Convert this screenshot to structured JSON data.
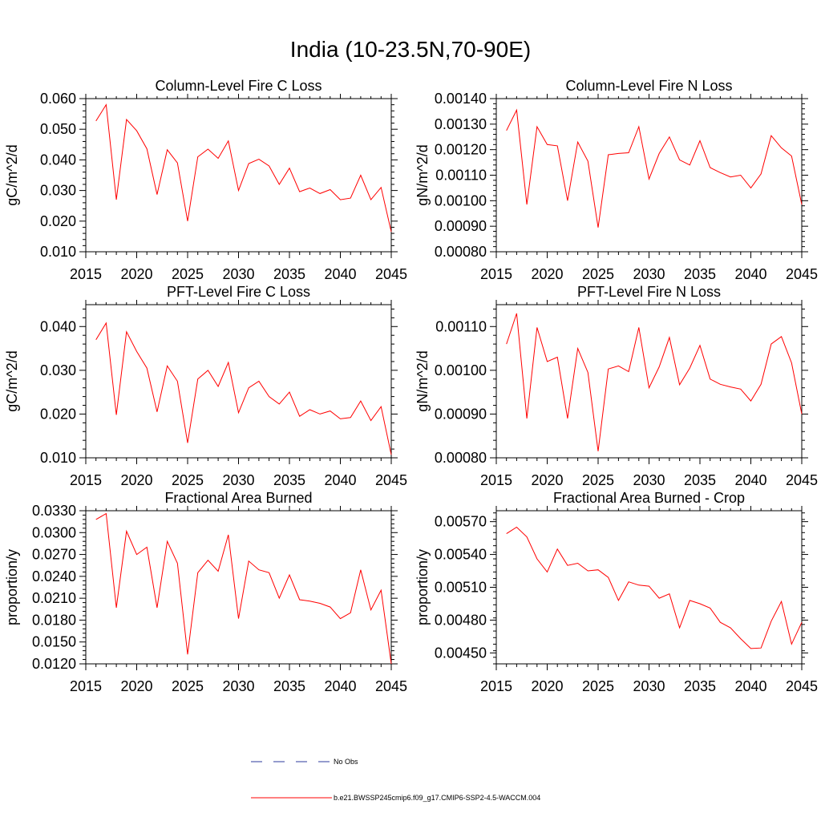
{
  "page_title": "India (10-23.5N,70-90E)",
  "legend": {
    "obs_label": "No Obs",
    "model_label": "b.e21.BWSSP245cmip6.f09_g17.CMIP6-SSP2-4.5-WACCM.004",
    "obs_color": "#2b3a9e",
    "model_color": "#ff0000"
  },
  "chart_data": [
    {
      "type": "line",
      "title": "Column-Level Fire C Loss",
      "xlabel": "",
      "ylabel": "gC/m^2/d",
      "xlim": [
        2015,
        2045
      ],
      "ylim": [
        0.01,
        0.06
      ],
      "xticks": [
        2015,
        2020,
        2025,
        2030,
        2035,
        2040,
        2045
      ],
      "yticks": [
        0.01,
        0.02,
        0.03,
        0.04,
        0.05,
        0.06
      ],
      "ydecimals": 3,
      "x": [
        2016,
        2017,
        2018,
        2019,
        2020,
        2021,
        2022,
        2023,
        2024,
        2025,
        2026,
        2027,
        2028,
        2029,
        2030,
        2031,
        2032,
        2033,
        2034,
        2035,
        2036,
        2037,
        2038,
        2039,
        2040,
        2041,
        2042,
        2043,
        2044,
        2045
      ],
      "series": [
        {
          "name": "b.e21.BWSSP245cmip6.f09_g17.CMIP6-SSP2-4.5-WACCM.004",
          "values": [
            0.0527,
            0.058,
            0.027,
            0.0532,
            0.0495,
            0.0436,
            0.0287,
            0.0433,
            0.039,
            0.02,
            0.041,
            0.0435,
            0.0405,
            0.0462,
            0.03,
            0.0388,
            0.0402,
            0.038,
            0.032,
            0.0373,
            0.0296,
            0.0308,
            0.029,
            0.0303,
            0.027,
            0.0275,
            0.035,
            0.027,
            0.031,
            0.0165
          ]
        }
      ]
    },
    {
      "type": "line",
      "title": "Column-Level Fire N Loss",
      "xlabel": "",
      "ylabel": "gN/m^2/d",
      "xlim": [
        2015,
        2045
      ],
      "ylim": [
        0.0008,
        0.0014
      ],
      "xticks": [
        2015,
        2020,
        2025,
        2030,
        2035,
        2040,
        2045
      ],
      "yticks": [
        0.0008,
        0.0009,
        0.001,
        0.0011,
        0.0012,
        0.0013,
        0.0014
      ],
      "ydecimals": 5,
      "x": [
        2016,
        2017,
        2018,
        2019,
        2020,
        2021,
        2022,
        2023,
        2024,
        2025,
        2026,
        2027,
        2028,
        2029,
        2030,
        2031,
        2032,
        2033,
        2034,
        2035,
        2036,
        2037,
        2038,
        2039,
        2040,
        2041,
        2042,
        2043,
        2044,
        2045
      ],
      "series": [
        {
          "name": "b.e21.BWSSP245cmip6.f09_g17.CMIP6-SSP2-4.5-WACCM.004",
          "values": [
            0.001275,
            0.001355,
            0.000985,
            0.00129,
            0.00122,
            0.001215,
            0.001,
            0.00123,
            0.001155,
            0.000895,
            0.00118,
            0.001185,
            0.001188,
            0.00129,
            0.001085,
            0.001185,
            0.00125,
            0.00116,
            0.00114,
            0.001235,
            0.00113,
            0.00111,
            0.001093,
            0.0011,
            0.00105,
            0.001105,
            0.001255,
            0.001207,
            0.001175,
            0.000985
          ]
        }
      ]
    },
    {
      "type": "line",
      "title": "PFT-Level Fire C Loss",
      "xlabel": "",
      "ylabel": "gC/m^2/d",
      "xlim": [
        2015,
        2045
      ],
      "ylim": [
        0.01,
        0.045
      ],
      "xticks": [
        2015,
        2020,
        2025,
        2030,
        2035,
        2040,
        2045
      ],
      "yticks": [
        0.01,
        0.02,
        0.03,
        0.04
      ],
      "ydecimals": 3,
      "x": [
        2016,
        2017,
        2018,
        2019,
        2020,
        2021,
        2022,
        2023,
        2024,
        2025,
        2026,
        2027,
        2028,
        2029,
        2030,
        2031,
        2032,
        2033,
        2034,
        2035,
        2036,
        2037,
        2038,
        2039,
        2040,
        2041,
        2042,
        2043,
        2044,
        2045
      ],
      "series": [
        {
          "name": "b.e21.BWSSP245cmip6.f09_g17.CMIP6-SSP2-4.5-WACCM.004",
          "values": [
            0.037,
            0.0408,
            0.0198,
            0.0388,
            0.0343,
            0.0305,
            0.0205,
            0.031,
            0.0275,
            0.0134,
            0.028,
            0.03,
            0.0263,
            0.0318,
            0.0203,
            0.026,
            0.0275,
            0.024,
            0.0223,
            0.025,
            0.0195,
            0.021,
            0.02,
            0.0207,
            0.0189,
            0.0192,
            0.023,
            0.0185,
            0.0217,
            0.0107
          ]
        }
      ]
    },
    {
      "type": "line",
      "title": "PFT-Level Fire N Loss",
      "xlabel": "",
      "ylabel": "gN/m^2/d",
      "xlim": [
        2015,
        2045
      ],
      "ylim": [
        0.0008,
        0.00115
      ],
      "xticks": [
        2015,
        2020,
        2025,
        2030,
        2035,
        2040,
        2045
      ],
      "yticks": [
        0.0008,
        0.0009,
        0.001,
        0.0011
      ],
      "ydecimals": 5,
      "x": [
        2016,
        2017,
        2018,
        2019,
        2020,
        2021,
        2022,
        2023,
        2024,
        2025,
        2026,
        2027,
        2028,
        2029,
        2030,
        2031,
        2032,
        2033,
        2034,
        2035,
        2036,
        2037,
        2038,
        2039,
        2040,
        2041,
        2042,
        2043,
        2044,
        2045
      ],
      "series": [
        {
          "name": "b.e21.BWSSP245cmip6.f09_g17.CMIP6-SSP2-4.5-WACCM.004",
          "values": [
            0.00106,
            0.00113,
            0.00089,
            0.001098,
            0.00102,
            0.00103,
            0.00089,
            0.00105,
            0.000995,
            0.000815,
            0.001003,
            0.00101,
            0.000997,
            0.001098,
            0.00096,
            0.001008,
            0.001075,
            0.000967,
            0.001005,
            0.001057,
            0.00098,
            0.000968,
            0.000962,
            0.000957,
            0.00093,
            0.000968,
            0.00106,
            0.001077,
            0.001017,
            0.0009
          ]
        }
      ]
    },
    {
      "type": "line",
      "title": "Fractional Area Burned",
      "xlabel": "",
      "ylabel": "proportion/y",
      "xlim": [
        2015,
        2045
      ],
      "ylim": [
        0.012,
        0.033
      ],
      "xticks": [
        2015,
        2020,
        2025,
        2030,
        2035,
        2040,
        2045
      ],
      "yticks": [
        0.012,
        0.015,
        0.018,
        0.021,
        0.024,
        0.027,
        0.03,
        0.033
      ],
      "ydecimals": 4,
      "x": [
        2016,
        2017,
        2018,
        2019,
        2020,
        2021,
        2022,
        2023,
        2024,
        2025,
        2026,
        2027,
        2028,
        2029,
        2030,
        2031,
        2032,
        2033,
        2034,
        2035,
        2036,
        2037,
        2038,
        2039,
        2040,
        2041,
        2042,
        2043,
        2044,
        2045
      ],
      "series": [
        {
          "name": "b.e21.BWSSP245cmip6.f09_g17.CMIP6-SSP2-4.5-WACCM.004",
          "values": [
            0.0318,
            0.0326,
            0.0197,
            0.0302,
            0.027,
            0.028,
            0.0197,
            0.0288,
            0.0258,
            0.0133,
            0.0245,
            0.0262,
            0.0247,
            0.0297,
            0.0182,
            0.0261,
            0.0249,
            0.0245,
            0.021,
            0.0242,
            0.0208,
            0.0206,
            0.0203,
            0.0198,
            0.0182,
            0.019,
            0.0249,
            0.0194,
            0.0221,
            0.012
          ]
        }
      ]
    },
    {
      "type": "line",
      "title": "Fractional Area Burned - Crop",
      "xlabel": "",
      "ylabel": "proportion/y",
      "xlim": [
        2015,
        2045
      ],
      "ylim": [
        0.0044,
        0.0058
      ],
      "xticks": [
        2015,
        2020,
        2025,
        2030,
        2035,
        2040,
        2045
      ],
      "yticks": [
        0.0045,
        0.0048,
        0.0051,
        0.0054,
        0.0057
      ],
      "ydecimals": 5,
      "x": [
        2016,
        2017,
        2018,
        2019,
        2020,
        2021,
        2022,
        2023,
        2024,
        2025,
        2026,
        2027,
        2028,
        2029,
        2030,
        2031,
        2032,
        2033,
        2034,
        2035,
        2036,
        2037,
        2038,
        2039,
        2040,
        2041,
        2042,
        2043,
        2044,
        2045
      ],
      "series": [
        {
          "name": "b.e21.BWSSP245cmip6.f09_g17.CMIP6-SSP2-4.5-WACCM.004",
          "values": [
            0.00559,
            0.00565,
            0.00556,
            0.00536,
            0.00524,
            0.00545,
            0.0053,
            0.00532,
            0.00525,
            0.00526,
            0.00519,
            0.00498,
            0.00515,
            0.00512,
            0.00511,
            0.005,
            0.00504,
            0.00473,
            0.00498,
            0.00495,
            0.00491,
            0.00478,
            0.00473,
            0.00463,
            0.00454,
            0.004545,
            0.00479,
            0.00497,
            0.00458,
            0.00478
          ]
        }
      ]
    }
  ]
}
